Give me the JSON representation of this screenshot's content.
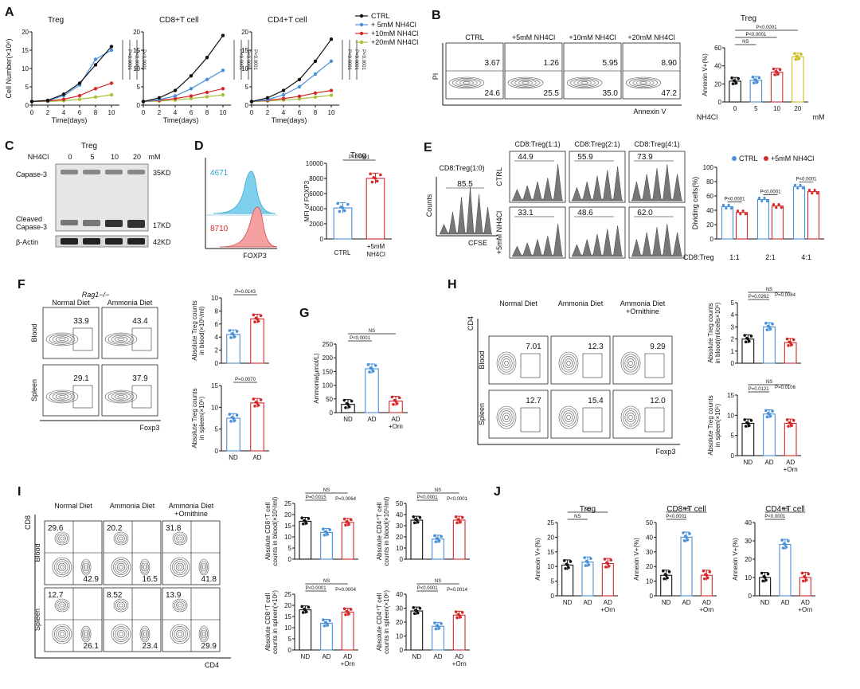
{
  "panels": {
    "A": {
      "letter": "A",
      "colors": {
        "CTRL": "#111111",
        "5mM": "#4a90d9",
        "10mM": "#d62828",
        "20mM": "#a8c03a"
      },
      "legend": [
        "CTRL",
        "+ 5mM NH4Cl",
        "+10mM NH4Cl",
        "+20mM NH4Cl"
      ],
      "xlabel": "Time(days)",
      "ylabel": "Cell Number(×10⁶)",
      "xticks": [
        0,
        2,
        4,
        6,
        8,
        10
      ],
      "subplots": [
        {
          "title": "Treg",
          "yticks": [
            0,
            5,
            10,
            15,
            20
          ],
          "ylim": [
            0,
            20
          ],
          "series": {
            "CTRL": [
              1,
              1.3,
              3,
              6,
              11,
              16
            ],
            "5mM": [
              1,
              1.2,
              2.6,
              5.5,
              12.5,
              15
            ],
            "10mM": [
              1,
              1.1,
              1.6,
              2.6,
              4.5,
              6
            ],
            "20mM": [
              1,
              1,
              1.2,
              1.6,
              2.2,
              2.8
            ]
          },
          "pvals": [
            "P<0.0001",
            "P<0.0001",
            "P<0.0001"
          ]
        },
        {
          "title": "CD8+T cell",
          "yticks": [
            0,
            5,
            10,
            15,
            20
          ],
          "ylim": [
            0,
            20
          ],
          "series": {
            "CTRL": [
              1,
              2,
              4,
              8,
              13,
              19
            ],
            "5mM": [
              1,
              1.5,
              2.5,
              4.5,
              7,
              9.5
            ],
            "10mM": [
              1,
              1.3,
              1.8,
              2.5,
              3.5,
              4.5
            ],
            "20mM": [
              1,
              1.1,
              1.4,
              1.8,
              2.3,
              2.8
            ]
          },
          "pvals": [
            "P<0.0001",
            "P<0.0001",
            "P<0.0001"
          ]
        },
        {
          "title": "CD4+T cell",
          "yticks": [
            0,
            5,
            10,
            15,
            20
          ],
          "ylim": [
            0,
            20
          ],
          "series": {
            "CTRL": [
              1,
              2,
              4,
              7,
              12,
              18
            ],
            "5mM": [
              1,
              1.5,
              2.8,
              5,
              8.5,
              12
            ],
            "10mM": [
              1,
              1.3,
              1.8,
              2.4,
              3.3,
              4
            ],
            "20mM": [
              1,
              1.1,
              1.4,
              1.7,
              2.2,
              2.7
            ]
          },
          "pvals": [
            "P<0.0001",
            "P<0.0001",
            "P<0.0001"
          ]
        }
      ]
    },
    "B": {
      "letter": "B",
      "flow": {
        "cols": [
          "CTRL",
          "+5mM NH4Cl",
          "+10mM NH4Cl",
          "+20mM NH4Cl"
        ],
        "upper": [
          "3.67",
          "1.26",
          "5.95",
          "8.90"
        ],
        "lower": [
          "24.6",
          "25.5",
          "35.0",
          "47.2"
        ],
        "ylabel": "PI",
        "xlabel": "Annexin V"
      },
      "bar": {
        "title": "Treg",
        "ylabel": "Annexin V+(%)",
        "xname": "NH4Cl",
        "categories": [
          "0",
          "5",
          "10",
          "20"
        ],
        "unit": "mM",
        "values": [
          23,
          24,
          33,
          50
        ],
        "yticks": [
          0,
          20,
          40,
          60
        ],
        "ylim": [
          0,
          60
        ],
        "colors": [
          "#111111",
          "#4a90d9",
          "#d62828",
          "#c8c020"
        ],
        "sig": [
          "P<0.0001",
          "P<0.0001",
          "NS"
        ]
      }
    },
    "C": {
      "letter": "C",
      "title": "Treg",
      "xname": "NH4Cl",
      "conc": [
        "0",
        "5",
        "10",
        "20"
      ],
      "unit": "mM",
      "rows": [
        "Capase-3",
        "Cleaved Capase-3",
        "β-Actin"
      ],
      "kd": [
        "35KD",
        "17KD",
        "42KD"
      ]
    },
    "D": {
      "letter": "D",
      "hist": {
        "top": "4671",
        "bottom": "8710",
        "xlabel": "FOXP3"
      },
      "bar": {
        "title": "Treg",
        "ylabel": "MFI of FOXP3",
        "categories": [
          "CTRL",
          "+5mM NH4Cl"
        ],
        "values": [
          4100,
          8000
        ],
        "yticks": [
          0,
          2000,
          4000,
          6000,
          8000,
          10000
        ],
        "ylim": [
          0,
          10000
        ],
        "sig": "P<0.0001"
      }
    },
    "E": {
      "letter": "E",
      "control": {
        "title": "CD8:Treg(1:0)",
        "value": "85.5",
        "ylabel": "Counts",
        "xlabel": "CFSE"
      },
      "cols": [
        "CD8:Treg(1:1)",
        "CD8:Treg(2:1)",
        "CD8:Treg(4:1)"
      ],
      "rows": [
        "CTRL",
        "+5mM NH4Cl"
      ],
      "values": [
        [
          "44.9",
          "55.9",
          "73.9"
        ],
        [
          "33.1",
          "48.6",
          "62.0"
        ]
      ],
      "bar": {
        "legend": [
          "CTRL",
          "+5mM NH4Cl"
        ],
        "ylabel": "Dividing cells(%)",
        "xname": "CD8:Treg",
        "categories": [
          "1:1",
          "2:1",
          "4:1"
        ],
        "ctrl": [
          45,
          55,
          73
        ],
        "nh4": [
          37,
          46,
          66
        ],
        "yticks": [
          0,
          20,
          40,
          60,
          80,
          100
        ],
        "ylim": [
          0,
          100
        ],
        "sig": [
          "P<0.0001",
          "P<0.0001",
          "P<0.0001"
        ]
      }
    },
    "F": {
      "letter": "F",
      "mouse": "Rag1−/−",
      "cols": [
        "Normal Diet",
        "Ammonia Diet"
      ],
      "rows": [
        "Blood",
        "Spleen"
      ],
      "values": [
        [
          "33.9",
          "43.4"
        ],
        [
          "29.1",
          "37.9"
        ]
      ],
      "xlabel": "Foxp3",
      "bars": [
        {
          "ylabel": "Absolute Treg counts in blood(×10⁵/ml)",
          "categories": [
            "ND",
            "AD"
          ],
          "values": [
            4.4,
            6.8
          ],
          "yticks": [
            0,
            2,
            4,
            6,
            8,
            10
          ],
          "ylim": [
            0,
            10
          ],
          "sig": "P=0.0143"
        },
        {
          "ylabel": "Absolute Treg counts in spleen(×10⁵)",
          "categories": [
            "ND",
            "AD"
          ],
          "values": [
            7.5,
            11
          ],
          "yticks": [
            0,
            5,
            10,
            15
          ],
          "ylim": [
            0,
            15
          ],
          "sig": "P=0.0070"
        }
      ]
    },
    "G": {
      "letter": "G",
      "ylabel": "Ammonia(μmol/L)",
      "categories": [
        "ND",
        "AD",
        "AD +Orn"
      ],
      "values": [
        30,
        160,
        42
      ],
      "yticks": [
        0,
        50,
        100,
        150,
        200,
        250
      ],
      "ylim": [
        0,
        250
      ],
      "sig": [
        "NS",
        "P<0.0001",
        "P<0.0001"
      ]
    },
    "H": {
      "letter": "H",
      "cols": [
        "Normal Diet",
        "Ammonia Diet",
        "Ammonia Diet +Ornithine"
      ],
      "rows": [
        "Blood",
        "Spleen"
      ],
      "values": [
        [
          "7.01",
          "12.3",
          "9.29"
        ],
        [
          "12.7",
          "15.4",
          "12.0"
        ]
      ],
      "ylabel": "CD4",
      "xlabel": "Foxp3",
      "bars": [
        {
          "ylabel": "Absolute Treg counts in blood(ml/cells×10⁵)",
          "categories": [
            "ND",
            "AD",
            "AD +Orn"
          ],
          "values": [
            2.0,
            3.0,
            1.7
          ],
          "yticks": [
            0,
            1,
            2,
            3,
            4,
            5
          ],
          "ylim": [
            0,
            5
          ],
          "sig": [
            "NS",
            "P=0.0262",
            "P=0.0084"
          ]
        },
        {
          "ylabel": "Absolute Treg counts in spleen(×10⁵)",
          "categories": [
            "ND",
            "AD",
            "AD +Orn"
          ],
          "values": [
            8,
            10.3,
            8
          ],
          "yticks": [
            0,
            5,
            10,
            15
          ],
          "ylim": [
            0,
            15
          ],
          "sig": [
            "NS",
            "P=0.0121",
            "P=0.0106"
          ]
        }
      ]
    },
    "I": {
      "letter": "I",
      "cols": [
        "Normal Diet",
        "Ammonia Diet",
        "Ammonia Diet +Ornithine"
      ],
      "rows": [
        "Blood",
        "Spleen"
      ],
      "ul": [
        [
          "29.6",
          "20.2",
          "31.8"
        ],
        [
          "12.7",
          "8.52",
          "13.9"
        ]
      ],
      "lr": [
        [
          "42.9",
          "16.5",
          "41.8"
        ],
        [
          "26.1",
          "23.4",
          "29.9"
        ]
      ],
      "ylabel": "CD8",
      "xlabel": "CD4",
      "bars": [
        {
          "ylabel": "Absolute CD8+T cell counts in blood(×10⁵/ml)",
          "values": [
            17,
            12,
            16.5
          ],
          "yticks": [
            0,
            5,
            10,
            15,
            20,
            25
          ],
          "ylim": [
            0,
            25
          ],
          "sig": [
            "NS",
            "P=0.0015",
            "P=0.0064"
          ]
        },
        {
          "ylabel": "Absolute CD4+T cell counts in blood(×10⁵/ml)",
          "values": [
            35,
            18,
            35
          ],
          "yticks": [
            0,
            10,
            20,
            30,
            40,
            50
          ],
          "ylim": [
            0,
            50
          ],
          "sig": [
            "NS",
            "P<0.0001",
            "P<0.0001"
          ]
        },
        {
          "ylabel": "Absolute CD8+T cell counts in spleen(×10⁶)",
          "values": [
            18,
            12,
            17
          ],
          "yticks": [
            0,
            5,
            10,
            15,
            20,
            25
          ],
          "ylim": [
            0,
            25
          ],
          "sig": [
            "NS",
            "P<0.0001",
            "P=0.0004"
          ]
        },
        {
          "ylabel": "Absolute CD4+T cell counts in spleen(×10⁶)",
          "values": [
            28,
            17,
            25
          ],
          "yticks": [
            0,
            10,
            20,
            30,
            40
          ],
          "ylim": [
            0,
            40
          ],
          "sig": [
            "NS",
            "P<0.0001",
            "P=0.0014"
          ]
        }
      ],
      "categories": [
        "ND",
        "AD",
        "AD +Orn"
      ]
    },
    "J": {
      "letter": "J",
      "ylabel": "Annexin V+(%)",
      "categories": [
        "ND",
        "AD",
        "AD +Orn"
      ],
      "plots": [
        {
          "title": "Treg",
          "values": [
            10.5,
            11.5,
            11
          ],
          "yticks": [
            0,
            5,
            10,
            15,
            20,
            25
          ],
          "ylim": [
            0,
            25
          ],
          "sig": [
            "NS",
            "NS"
          ]
        },
        {
          "title": "CD8+T cell",
          "values": [
            14,
            40,
            14
          ],
          "yticks": [
            0,
            10,
            20,
            30,
            40,
            50
          ],
          "ylim": [
            0,
            50
          ],
          "sig": [
            "NS",
            "P<0.0001"
          ]
        },
        {
          "title": "CD4+T cell",
          "values": [
            10,
            28,
            10
          ],
          "yticks": [
            0,
            10,
            20,
            30,
            40
          ],
          "ylim": [
            0,
            40
          ],
          "sig": [
            "NS",
            "P<0.0001"
          ]
        }
      ]
    }
  }
}
